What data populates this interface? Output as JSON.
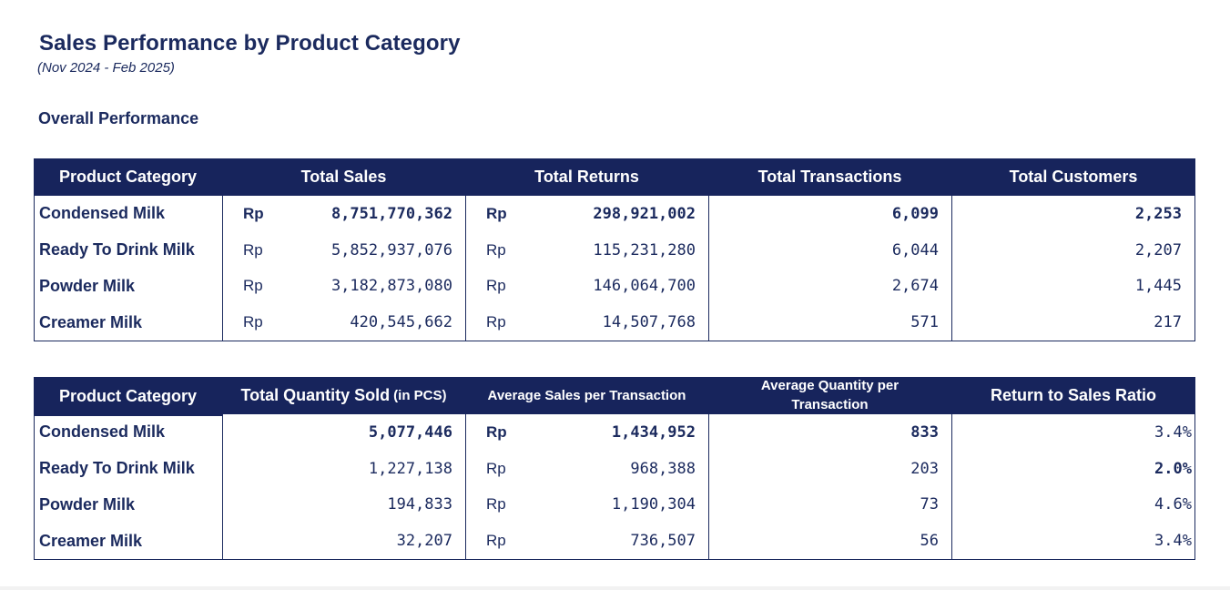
{
  "title": "Sales Performance by Product Category",
  "subtitle": "(Nov 2024 - Feb 2025)",
  "section_title": "Overall Performance",
  "currency": "Rp",
  "table1": {
    "headers": [
      "Product Category",
      "Total Sales",
      "Total Returns",
      "Total Transactions",
      "Total Customers"
    ],
    "rows": [
      {
        "category": "Condensed Milk",
        "total_sales": "8,751,770,362",
        "total_returns": "298,921,002",
        "total_transactions": "6,099",
        "total_customers": "2,253"
      },
      {
        "category": "Ready To Drink Milk",
        "total_sales": "5,852,937,076",
        "total_returns": "115,231,280",
        "total_transactions": "6,044",
        "total_customers": "2,207"
      },
      {
        "category": "Powder Milk",
        "total_sales": "3,182,873,080",
        "total_returns": "146,064,700",
        "total_transactions": "2,674",
        "total_customers": "1,445"
      },
      {
        "category": "Creamer Milk",
        "total_sales": "420,545,662",
        "total_returns": "14,507,768",
        "total_transactions": "571",
        "total_customers": "217"
      }
    ]
  },
  "table2": {
    "headers": {
      "category": "Product Category",
      "qty": "Total Quantity Sold",
      "qty_unit": "(in PCS)",
      "avg_sales": "Average Sales per Transaction",
      "avg_qty": "Average Quantity per Transaction",
      "ratio": "Return to Sales Ratio"
    },
    "rows": [
      {
        "category": "Condensed Milk",
        "qty": "5,077,446",
        "avg_sales": "1,434,952",
        "avg_qty": "833",
        "ratio": "3.4%"
      },
      {
        "category": "Ready To Drink Milk",
        "qty": "1,227,138",
        "avg_sales": "968,388",
        "avg_qty": "203",
        "ratio": "2.0%"
      },
      {
        "category": "Powder Milk",
        "qty": "194,833",
        "avg_sales": "1,190,304",
        "avg_qty": "73",
        "ratio": "4.6%"
      },
      {
        "category": "Creamer Milk",
        "qty": "32,207",
        "avg_sales": "736,507",
        "avg_qty": "56",
        "ratio": "3.4%"
      }
    ]
  },
  "colors": {
    "header_bg": "#17245c",
    "text": "#1b2a5e"
  }
}
